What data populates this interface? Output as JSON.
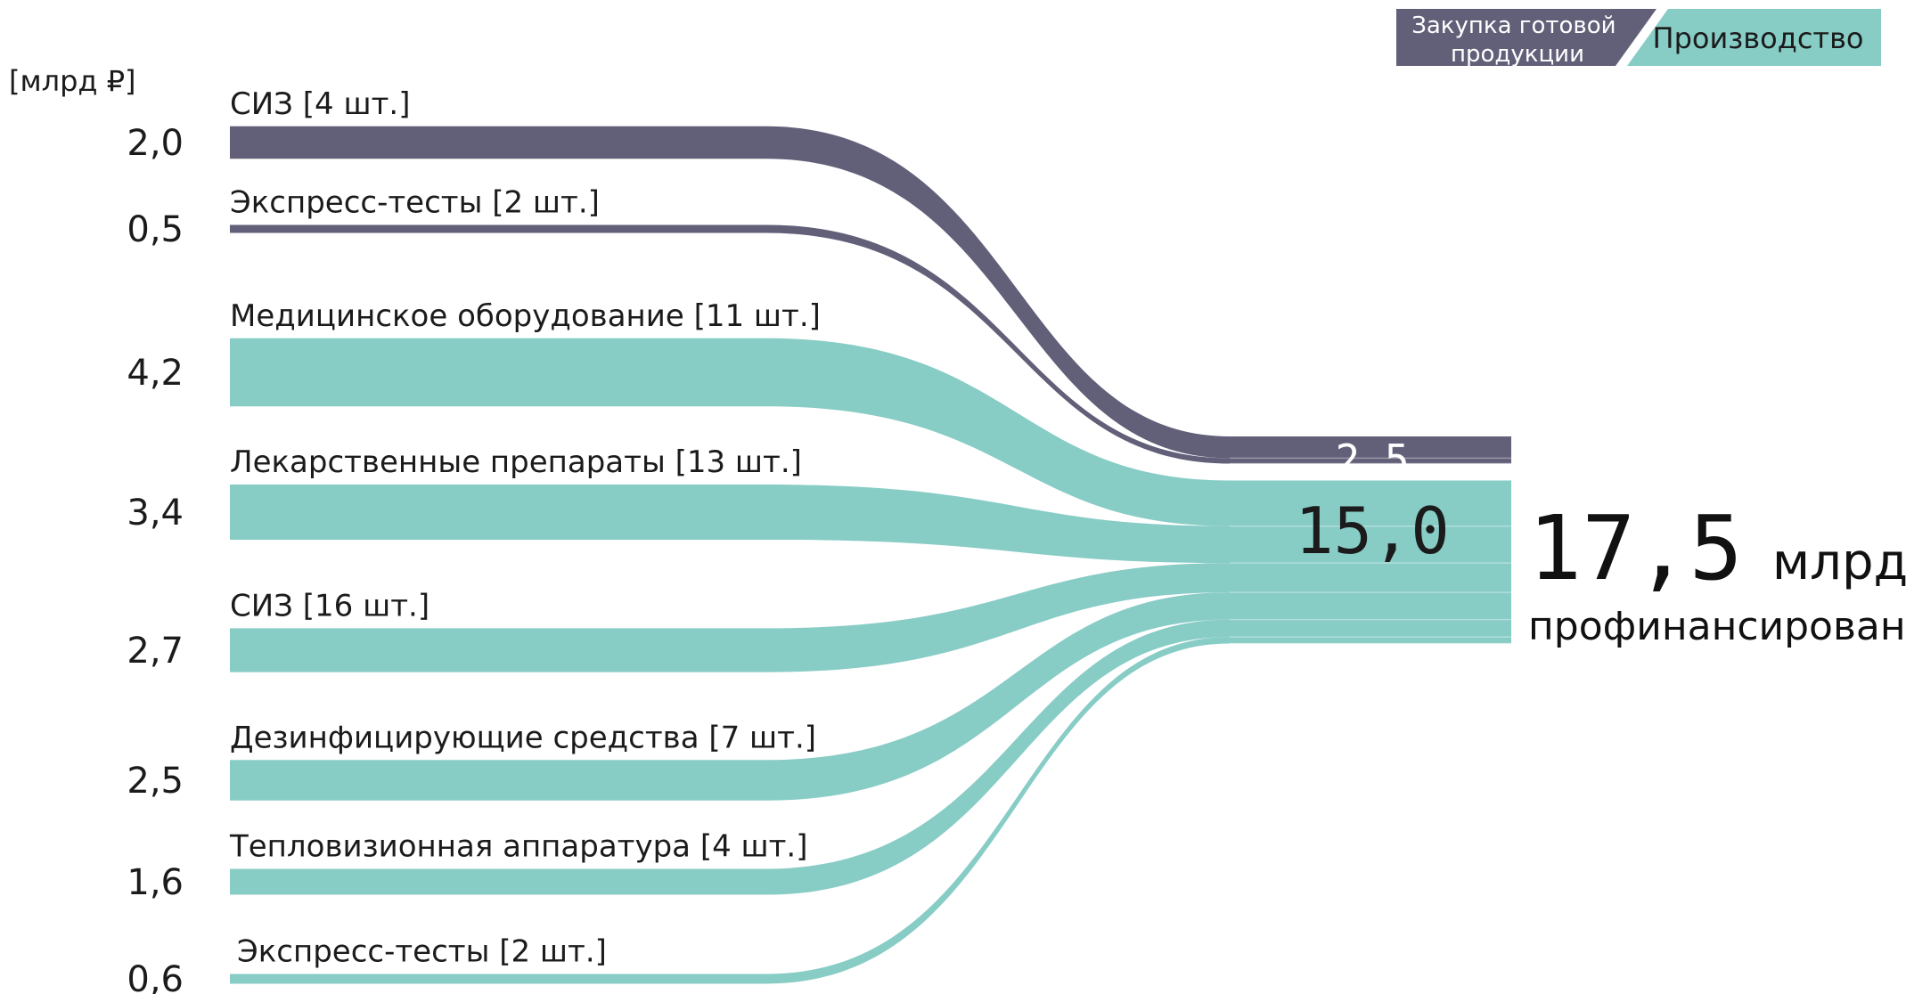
{
  "legend": {
    "purchase": "Закупка готовой продукции",
    "purchase_lines": [
      "Закупка готовой",
      "продукции"
    ],
    "production": "Производство"
  },
  "unit_label": "[млрд ₽]",
  "total": {
    "value": "17,5",
    "unit": "млрд ₽",
    "caption": "профинансировано"
  },
  "colors": {
    "purchase": "#625f79",
    "production": "#88ccc6"
  },
  "chart_data": {
    "type": "sankey",
    "unit": "[млрд ₽]",
    "flows": [
      {
        "label": "СИЗ [4 шт.]",
        "value": 2.0,
        "value_text": "2,0",
        "group": "purchase"
      },
      {
        "label": "Экспресс-тесты [2 шт.]",
        "value": 0.5,
        "value_text": "0,5",
        "group": "purchase"
      },
      {
        "label": "Медицинское оборудование [11 шт.]",
        "value": 4.2,
        "value_text": "4,2",
        "group": "production"
      },
      {
        "label": "Лекарственные препараты [13 шт.]",
        "value": 3.4,
        "value_text": "3,4",
        "group": "production"
      },
      {
        "label": "СИЗ [16 шт.]",
        "value": 2.7,
        "value_text": "2,7",
        "group": "production"
      },
      {
        "label": "Дезинфицирующие средства [7 шт.]",
        "value": 2.5,
        "value_text": "2,5",
        "group": "production"
      },
      {
        "label": "Тепловизионная аппаратура [4 шт.]",
        "value": 1.6,
        "value_text": "1,6",
        "group": "production"
      },
      {
        "label": "Экспресс-тесты [2 шт.]",
        "value": 0.6,
        "value_text": "0,6",
        "group": "production"
      }
    ],
    "targets": [
      {
        "group": "purchase",
        "value": 2.5,
        "value_text": "2,5"
      },
      {
        "group": "production",
        "value": 15.0,
        "value_text": "15,0"
      }
    ],
    "total": {
      "value": 17.5,
      "value_text": "17,5"
    }
  }
}
